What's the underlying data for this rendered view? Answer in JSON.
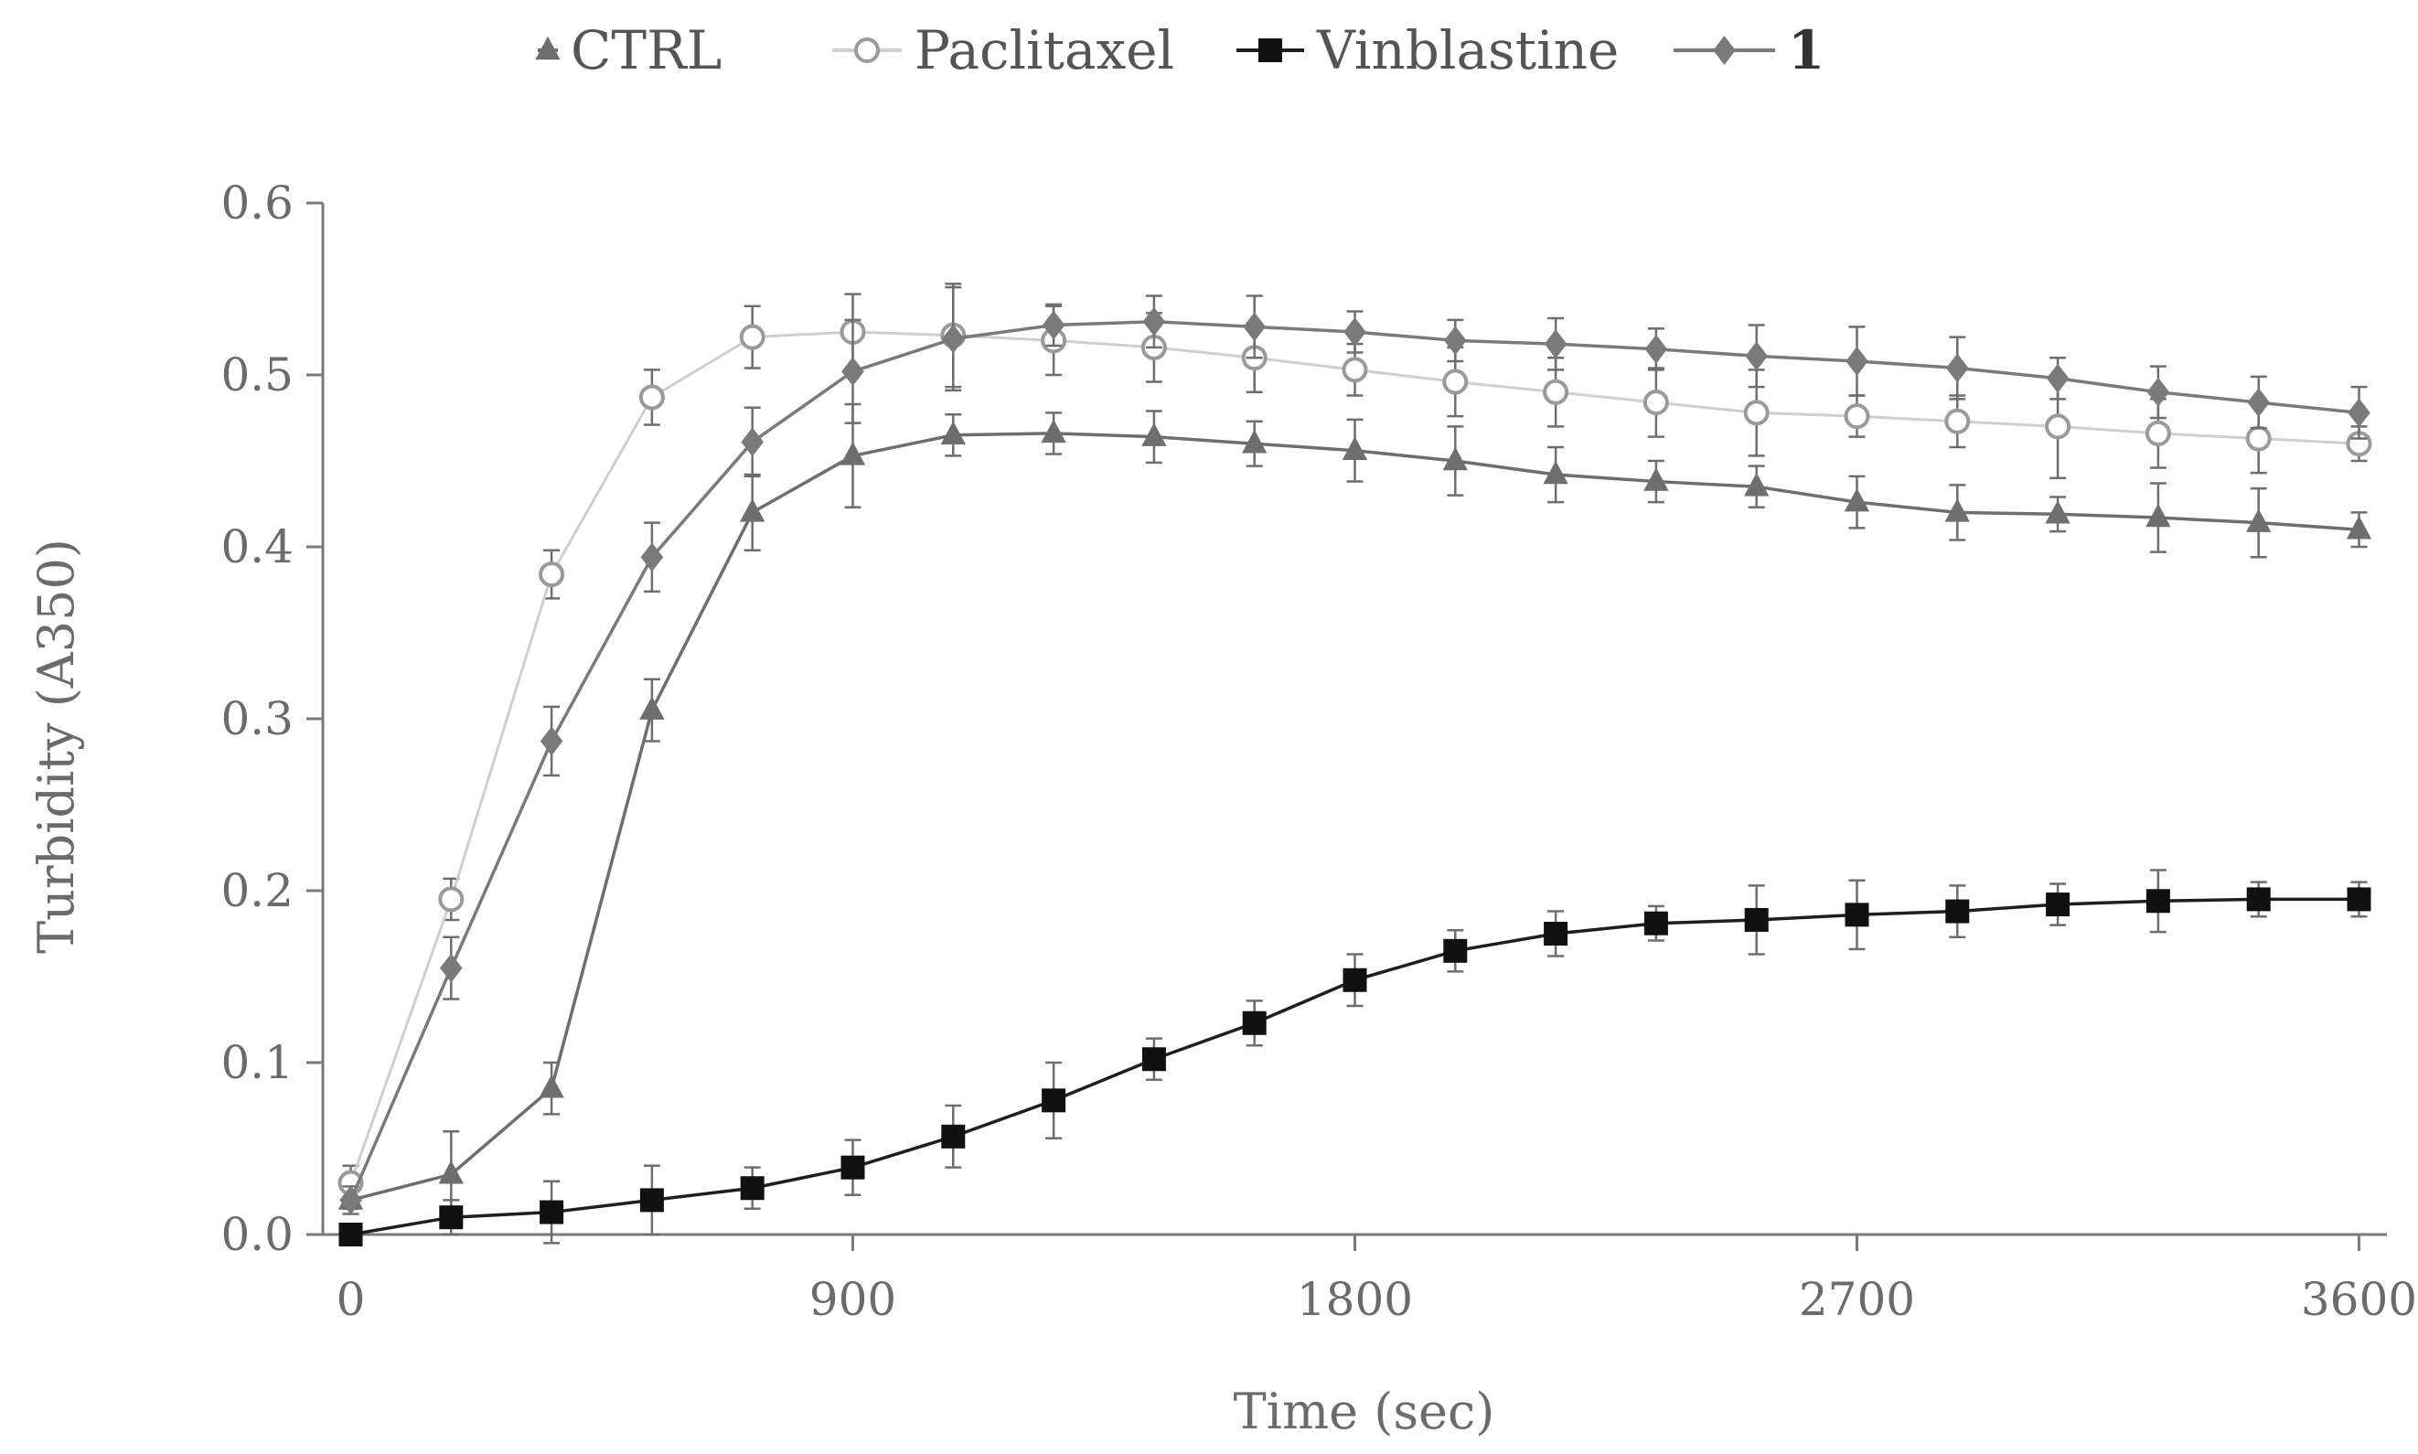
{
  "chart_data": {
    "type": "line",
    "title": "",
    "xlabel": "Time (sec)",
    "ylabel": "Turbidity (A350)",
    "xlim": [
      -50,
      3650
    ],
    "ylim": [
      0,
      0.6
    ],
    "x_ticks": [
      0,
      900,
      1800,
      2700,
      3600
    ],
    "x_tick_labels": [
      "0",
      "900",
      "1800",
      "2700",
      "3600"
    ],
    "y_ticks": [
      0,
      0.1,
      0.2,
      0.3,
      0.4,
      0.5,
      0.6
    ],
    "y_tick_labels": [
      "0.0",
      "0.1",
      "0.2",
      "0.3",
      "0.4",
      "0.5",
      "0.6"
    ],
    "grid": false,
    "legend_position": "top",
    "x": [
      0,
      180,
      360,
      540,
      720,
      900,
      1080,
      1260,
      1440,
      1620,
      1800,
      1980,
      2160,
      2340,
      2520,
      2700,
      2880,
      3060,
      3240,
      3420,
      3600
    ],
    "series": [
      {
        "name": "CTRL",
        "marker": "triangle",
        "color": "#6e6e6e",
        "fill": "#6e6e6e",
        "bold": false,
        "values": [
          0.02,
          0.035,
          0.085,
          0.305,
          0.42,
          0.453,
          0.465,
          0.466,
          0.464,
          0.46,
          0.456,
          0.45,
          0.442,
          0.438,
          0.435,
          0.426,
          0.42,
          0.419,
          0.417,
          0.414,
          0.41
        ],
        "errors": [
          0.005,
          0.025,
          0.015,
          0.018,
          0.022,
          0.03,
          0.012,
          0.012,
          0.015,
          0.013,
          0.018,
          0.02,
          0.016,
          0.012,
          0.012,
          0.015,
          0.016,
          0.01,
          0.02,
          0.02,
          0.01
        ]
      },
      {
        "name": "Paclitaxel",
        "marker": "circle",
        "color": "#cfcfcf",
        "fill": "#ffffff",
        "bold": false,
        "values": [
          0.03,
          0.195,
          0.384,
          0.487,
          0.522,
          0.525,
          0.523,
          0.52,
          0.516,
          0.51,
          0.503,
          0.496,
          0.49,
          0.484,
          0.478,
          0.476,
          0.473,
          0.47,
          0.466,
          0.463,
          0.46
        ],
        "errors": [
          0.01,
          0.012,
          0.014,
          0.016,
          0.018,
          0.022,
          0.03,
          0.02,
          0.02,
          0.02,
          0.015,
          0.02,
          0.02,
          0.02,
          0.025,
          0.012,
          0.015,
          0.03,
          0.02,
          0.02,
          0.01
        ]
      },
      {
        "name": "Vinblastine",
        "marker": "square",
        "color": "#1e1e1e",
        "fill": "#111111",
        "bold": false,
        "values": [
          0.0,
          0.01,
          0.013,
          0.02,
          0.027,
          0.039,
          0.057,
          0.078,
          0.102,
          0.123,
          0.148,
          0.165,
          0.175,
          0.181,
          0.183,
          0.186,
          0.188,
          0.192,
          0.194,
          0.195,
          0.195
        ],
        "errors": [
          0.003,
          0.01,
          0.018,
          0.02,
          0.012,
          0.016,
          0.018,
          0.022,
          0.012,
          0.013,
          0.015,
          0.012,
          0.013,
          0.01,
          0.02,
          0.02,
          0.015,
          0.012,
          0.018,
          0.01,
          0.01
        ]
      },
      {
        "name": "1",
        "marker": "diamond",
        "color": "#7a7a7a",
        "fill": "#7a7a7a",
        "bold": true,
        "values": [
          0.02,
          0.155,
          0.287,
          0.394,
          0.461,
          0.502,
          0.521,
          0.529,
          0.531,
          0.528,
          0.525,
          0.52,
          0.518,
          0.515,
          0.511,
          0.508,
          0.504,
          0.498,
          0.49,
          0.484,
          0.478
        ],
        "errors": [
          0.008,
          0.018,
          0.02,
          0.02,
          0.02,
          0.03,
          0.03,
          0.012,
          0.015,
          0.018,
          0.012,
          0.012,
          0.015,
          0.012,
          0.018,
          0.02,
          0.018,
          0.012,
          0.015,
          0.015,
          0.015
        ]
      }
    ]
  }
}
